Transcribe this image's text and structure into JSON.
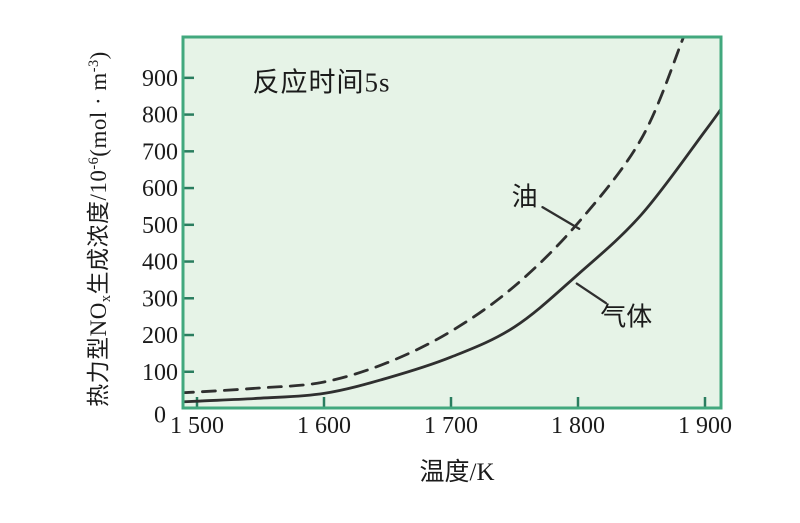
{
  "chart_data": {
    "type": "line",
    "title": "",
    "xlabel": "温度/K",
    "ylabel": "热力型NOₓ生成浓度/10⁻⁶(mol·m⁻³)",
    "annotation": "反应时间5s",
    "x_tick_values": [
      1500,
      1600,
      1700,
      1800,
      1900
    ],
    "x_tick_labels": [
      "1 500",
      "1 600",
      "1 700",
      "1 800",
      "1 900"
    ],
    "y_tick_values": [
      0,
      100,
      200,
      300,
      400,
      500,
      600,
      700,
      800,
      900
    ],
    "y_tick_labels": [
      "0",
      "100",
      "200",
      "300",
      "400",
      "500",
      "600",
      "700",
      "800",
      "900"
    ],
    "xlim": [
      1489,
      1913
    ],
    "ylim": [
      0,
      1010
    ],
    "grid": false,
    "legend_position": "inline-labels",
    "colors": {
      "plot_bg": "#e6f3e7",
      "plot_border": "#42a87e",
      "tick": "#2a7d5f",
      "curve": "#2f2f2f",
      "text": "#1b1b1b"
    },
    "series": [
      {
        "name": "油",
        "line_style": "dashed",
        "points": [
          [
            1487,
            43
          ],
          [
            1500,
            45
          ],
          [
            1550,
            56
          ],
          [
            1600,
            72
          ],
          [
            1650,
            125
          ],
          [
            1700,
            210
          ],
          [
            1750,
            333
          ],
          [
            1800,
            505
          ],
          [
            1850,
            735
          ],
          [
            1883,
            1010
          ],
          [
            1892,
            1095
          ]
        ]
      },
      {
        "name": "气体",
        "line_style": "solid",
        "points": [
          [
            1487,
            18
          ],
          [
            1500,
            20
          ],
          [
            1550,
            28
          ],
          [
            1600,
            41
          ],
          [
            1650,
            83
          ],
          [
            1700,
            140
          ],
          [
            1750,
            222
          ],
          [
            1800,
            365
          ],
          [
            1850,
            528
          ],
          [
            1900,
            755
          ],
          [
            1914,
            822
          ]
        ]
      }
    ],
    "series_labels": [
      {
        "text": "油",
        "anchor": [
          1758,
          580
        ],
        "leader": [
          1772,
          548,
          1801,
          489
        ]
      },
      {
        "text": "气体",
        "anchor": [
          1838,
          255
        ],
        "leader": [
          1822,
          287,
          1799,
          340
        ]
      }
    ],
    "annotation_anchor": [
      1598,
      894
    ]
  },
  "y_axis_title": {
    "segments": [
      {
        "t": "热力型NO"
      },
      {
        "t": "x",
        "style": "sub"
      },
      {
        "t": "生成浓度/10"
      },
      {
        "t": "-6",
        "style": "sup"
      },
      {
        "t": "(mol · m"
      },
      {
        "t": "-3",
        "style": "sup"
      },
      {
        "t": ")"
      }
    ]
  }
}
